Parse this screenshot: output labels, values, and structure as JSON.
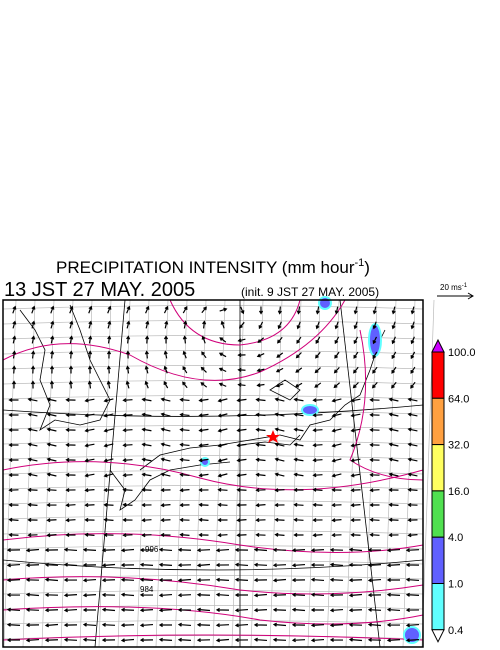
{
  "header": {
    "title": "PRECIPITATION INTENSITY (mm hour",
    "title_exponent": "-1",
    "title_close": ")",
    "valid_time": "13 JST 27 MAY. 2005",
    "init_time": "(init. 9 JST 27 MAY. 2005)"
  },
  "vector_scale": {
    "label": "20 ms",
    "exponent": "-1"
  },
  "colorbar": {
    "labels": [
      "100.0",
      "64.0",
      "32.0",
      "16.0",
      "4.0",
      "1.0",
      "0.4"
    ],
    "colors": [
      "#cc00ff",
      "#ff0000",
      "#ffa040",
      "#ffff60",
      "#50e050",
      "#6060ff",
      "#60ffff",
      "#ffffff"
    ]
  },
  "contour_labels": [
    "996",
    "984"
  ]
}
